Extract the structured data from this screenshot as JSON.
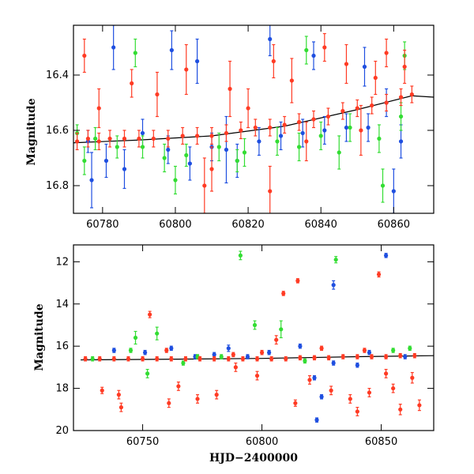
{
  "colors": {
    "blue": "#1f4fe0",
    "green": "#33dd33",
    "red": "#ff3b24",
    "trend": "#000000"
  },
  "chart_data": [
    {
      "type": "scatter",
      "panel": "top",
      "xlabel": "",
      "ylabel": "Magnitude",
      "xlim": [
        60772,
        60871
      ],
      "ylim": [
        16.9,
        16.22
      ],
      "y_inverted": true,
      "xticks": [
        60780,
        60800,
        60820,
        60840,
        60860
      ],
      "yticks": [
        16.4,
        16.6,
        16.8
      ],
      "ytick_labels": [
        "16.4",
        "16.6",
        "16.8"
      ],
      "series": [
        {
          "color": "red",
          "points": [
            [
              60773,
              16.64,
              0.03
            ],
            [
              60776,
              16.63,
              0.03
            ],
            [
              60779,
              16.64,
              0.03
            ],
            [
              60782,
              16.63,
              0.03
            ],
            [
              60786,
              16.63,
              0.03
            ],
            [
              60790,
              16.63,
              0.03
            ],
            [
              60794,
              16.63,
              0.03
            ],
            [
              60798,
              16.63,
              0.03
            ],
            [
              60802,
              16.62,
              0.03
            ],
            [
              60806,
              16.62,
              0.03
            ],
            [
              60810,
              16.62,
              0.03
            ],
            [
              60814,
              16.61,
              0.03
            ],
            [
              60818,
              16.6,
              0.03
            ],
            [
              60822,
              16.59,
              0.03
            ],
            [
              60826,
              16.59,
              0.03
            ],
            [
              60830,
              16.58,
              0.03
            ],
            [
              60834,
              16.57,
              0.03
            ],
            [
              60838,
              16.56,
              0.03
            ],
            [
              60842,
              16.55,
              0.03
            ],
            [
              60846,
              16.53,
              0.03
            ],
            [
              60850,
              16.52,
              0.03
            ],
            [
              60854,
              16.51,
              0.03
            ],
            [
              60858,
              16.5,
              0.03
            ],
            [
              60862,
              16.48,
              0.03
            ],
            [
              60865,
              16.47,
              0.03
            ],
            [
              60775,
              16.33,
              0.06
            ],
            [
              60779,
              16.52,
              0.07
            ],
            [
              60788,
              16.43,
              0.05
            ],
            [
              60795,
              16.47,
              0.08
            ],
            [
              60803,
              16.38,
              0.09
            ],
            [
              60810,
              16.74,
              0.08
            ],
            [
              60815,
              16.45,
              0.1
            ],
            [
              60820,
              16.52,
              0.07
            ],
            [
              60827,
              16.35,
              0.06
            ],
            [
              60832,
              16.42,
              0.08
            ],
            [
              60836,
              16.64,
              0.07
            ],
            [
              60841,
              16.3,
              0.05
            ],
            [
              60847,
              16.36,
              0.07
            ],
            [
              60851,
              16.6,
              0.09
            ],
            [
              60855,
              16.41,
              0.06
            ],
            [
              60858,
              16.32,
              0.05
            ],
            [
              60863,
              16.37,
              0.06
            ],
            [
              60808,
              16.8,
              0.1
            ],
            [
              60826,
              16.82,
              0.09
            ]
          ]
        },
        {
          "color": "green",
          "points": [
            [
              60773,
              16.61,
              0.03
            ],
            [
              60778,
              16.63,
              0.04
            ],
            [
              60784,
              16.66,
              0.04
            ],
            [
              60791,
              16.66,
              0.04
            ],
            [
              60797,
              16.7,
              0.05
            ],
            [
              60803,
              16.69,
              0.04
            ],
            [
              60812,
              16.66,
              0.05
            ],
            [
              60819,
              16.68,
              0.05
            ],
            [
              60828,
              16.64,
              0.05
            ],
            [
              60834,
              16.66,
              0.05
            ],
            [
              60840,
              16.62,
              0.05
            ],
            [
              60848,
              16.59,
              0.05
            ],
            [
              60856,
              16.63,
              0.05
            ],
            [
              60862,
              16.55,
              0.05
            ],
            [
              60775,
              16.71,
              0.05
            ],
            [
              60789,
              16.32,
              0.05
            ],
            [
              60800,
              16.78,
              0.05
            ],
            [
              60817,
              16.71,
              0.04
            ],
            [
              60836,
              16.31,
              0.05
            ],
            [
              60845,
              16.68,
              0.06
            ],
            [
              60857,
              16.8,
              0.06
            ],
            [
              60863,
              16.33,
              0.05
            ]
          ]
        },
        {
          "color": "blue",
          "points": [
            [
              60776,
              16.64,
              0.04
            ],
            [
              60781,
              16.71,
              0.06
            ],
            [
              60786,
              16.74,
              0.07
            ],
            [
              60791,
              16.61,
              0.05
            ],
            [
              60798,
              16.67,
              0.05
            ],
            [
              60804,
              16.72,
              0.06
            ],
            [
              60810,
              16.66,
              0.05
            ],
            [
              60817,
              16.71,
              0.06
            ],
            [
              60823,
              16.64,
              0.05
            ],
            [
              60829,
              16.62,
              0.05
            ],
            [
              60835,
              16.61,
              0.05
            ],
            [
              60841,
              16.6,
              0.05
            ],
            [
              60847,
              16.59,
              0.05
            ],
            [
              60853,
              16.59,
              0.05
            ],
            [
              60858,
              16.5,
              0.05
            ],
            [
              60777,
              16.78,
              0.1
            ],
            [
              60783,
              16.3,
              0.08
            ],
            [
              60799,
              16.31,
              0.07
            ],
            [
              60806,
              16.35,
              0.08
            ],
            [
              60814,
              16.67,
              0.12
            ],
            [
              60826,
              16.27,
              0.06
            ],
            [
              60838,
              16.33,
              0.05
            ],
            [
              60852,
              16.37,
              0.07
            ],
            [
              60860,
              16.82,
              0.08
            ],
            [
              60862,
              16.64,
              0.06
            ]
          ]
        }
      ],
      "trend": [
        [
          60772,
          16.645
        ],
        [
          60790,
          16.635
        ],
        [
          60810,
          16.62
        ],
        [
          60830,
          16.585
        ],
        [
          60850,
          16.525
        ],
        [
          60865,
          16.475
        ],
        [
          60871,
          16.48
        ]
      ]
    },
    {
      "type": "scatter",
      "panel": "bottom",
      "xlabel": "HJD−2400000",
      "ylabel": "Magnitude",
      "xlim": [
        60721,
        60872
      ],
      "ylim": [
        20,
        11.2
      ],
      "y_inverted": true,
      "xticks": [
        60750,
        60800,
        60850
      ],
      "yticks": [
        12,
        14,
        16,
        18,
        20
      ],
      "ytick_labels": [
        "12",
        "14",
        "16",
        "18",
        "20"
      ],
      "series": [
        {
          "color": "red",
          "points": [
            [
              60726,
              16.6,
              0.1
            ],
            [
              60732,
              16.6,
              0.1
            ],
            [
              60738,
              16.6,
              0.1
            ],
            [
              60744,
              16.6,
              0.1
            ],
            [
              60750,
              16.6,
              0.1
            ],
            [
              60756,
              16.6,
              0.1
            ],
            [
              60762,
              16.6,
              0.1
            ],
            [
              60768,
              16.6,
              0.1
            ],
            [
              60774,
              16.6,
              0.1
            ],
            [
              60780,
              16.6,
              0.1
            ],
            [
              60786,
              16.6,
              0.1
            ],
            [
              60792,
              16.6,
              0.1
            ],
            [
              60798,
              16.6,
              0.1
            ],
            [
              60804,
              16.6,
              0.1
            ],
            [
              60810,
              16.6,
              0.1
            ],
            [
              60816,
              16.55,
              0.1
            ],
            [
              60822,
              16.55,
              0.1
            ],
            [
              60828,
              16.55,
              0.1
            ],
            [
              60834,
              16.5,
              0.1
            ],
            [
              60840,
              16.5,
              0.1
            ],
            [
              60846,
              16.5,
              0.1
            ],
            [
              60852,
              16.5,
              0.1
            ],
            [
              60858,
              16.45,
              0.1
            ],
            [
              60864,
              16.45,
              0.1
            ],
            [
              60733,
              18.1,
              0.15
            ],
            [
              60740,
              18.3,
              0.2
            ],
            [
              60741,
              18.9,
              0.2
            ],
            [
              60753,
              14.5,
              0.15
            ],
            [
              60761,
              18.7,
              0.2
            ],
            [
              60765,
              17.9,
              0.2
            ],
            [
              60773,
              18.5,
              0.2
            ],
            [
              60781,
              18.3,
              0.2
            ],
            [
              60789,
              17.0,
              0.2
            ],
            [
              60798,
              17.4,
              0.2
            ],
            [
              60806,
              15.7,
              0.2
            ],
            [
              60809,
              13.5,
              0.1
            ],
            [
              60814,
              18.7,
              0.15
            ],
            [
              60815,
              12.9,
              0.1
            ],
            [
              60820,
              17.6,
              0.2
            ],
            [
              60829,
              18.1,
              0.2
            ],
            [
              60837,
              18.5,
              0.2
            ],
            [
              60840,
              19.1,
              0.2
            ],
            [
              60845,
              18.2,
              0.2
            ],
            [
              60849,
              12.6,
              0.12
            ],
            [
              60852,
              17.3,
              0.2
            ],
            [
              60855,
              18.0,
              0.2
            ],
            [
              60858,
              19.0,
              0.25
            ],
            [
              60863,
              17.5,
              0.25
            ],
            [
              60866,
              18.8,
              0.25
            ],
            [
              60760,
              16.2,
              0.1
            ],
            [
              60788,
              16.4,
              0.1
            ],
            [
              60800,
              16.3,
              0.1
            ],
            [
              60825,
              16.1,
              0.1
            ],
            [
              60843,
              16.2,
              0.1
            ]
          ]
        },
        {
          "color": "green",
          "points": [
            [
              60729,
              16.6,
              0.1
            ],
            [
              60745,
              16.2,
              0.1
            ],
            [
              60747,
              15.6,
              0.3
            ],
            [
              60752,
              17.3,
              0.2
            ],
            [
              60756,
              15.4,
              0.3
            ],
            [
              60773,
              16.5,
              0.1
            ],
            [
              60791,
              11.7,
              0.2
            ],
            [
              60797,
              15.0,
              0.2
            ],
            [
              60808,
              15.2,
              0.4
            ],
            [
              60818,
              16.7,
              0.1
            ],
            [
              60831,
              11.9,
              0.15
            ],
            [
              60855,
              16.2,
              0.1
            ],
            [
              60862,
              16.1,
              0.1
            ],
            [
              60767,
              16.8,
              0.1
            ],
            [
              60783,
              16.5,
              0.1
            ]
          ]
        },
        {
          "color": "blue",
          "points": [
            [
              60738,
              16.2,
              0.1
            ],
            [
              60751,
              16.3,
              0.1
            ],
            [
              60762,
              16.1,
              0.1
            ],
            [
              60772,
              16.5,
              0.1
            ],
            [
              60780,
              16.4,
              0.1
            ],
            [
              60786,
              16.1,
              0.15
            ],
            [
              60794,
              16.5,
              0.1
            ],
            [
              60803,
              16.3,
              0.1
            ],
            [
              60816,
              16.0,
              0.1
            ],
            [
              60822,
              17.5,
              0.1
            ],
            [
              60825,
              18.4,
              0.1
            ],
            [
              60823,
              19.5,
              0.1
            ],
            [
              60830,
              13.1,
              0.2
            ],
            [
              60840,
              16.9,
              0.1
            ],
            [
              60852,
              11.7,
              0.1
            ],
            [
              60845,
              16.3,
              0.1
            ],
            [
              60860,
              16.5,
              0.1
            ],
            [
              60830,
              16.8,
              0.1
            ]
          ]
        }
      ],
      "trend": [
        [
          60724,
          16.65
        ],
        [
          60760,
          16.62
        ],
        [
          60800,
          16.58
        ],
        [
          60840,
          16.5
        ],
        [
          60872,
          16.45
        ]
      ]
    }
  ]
}
